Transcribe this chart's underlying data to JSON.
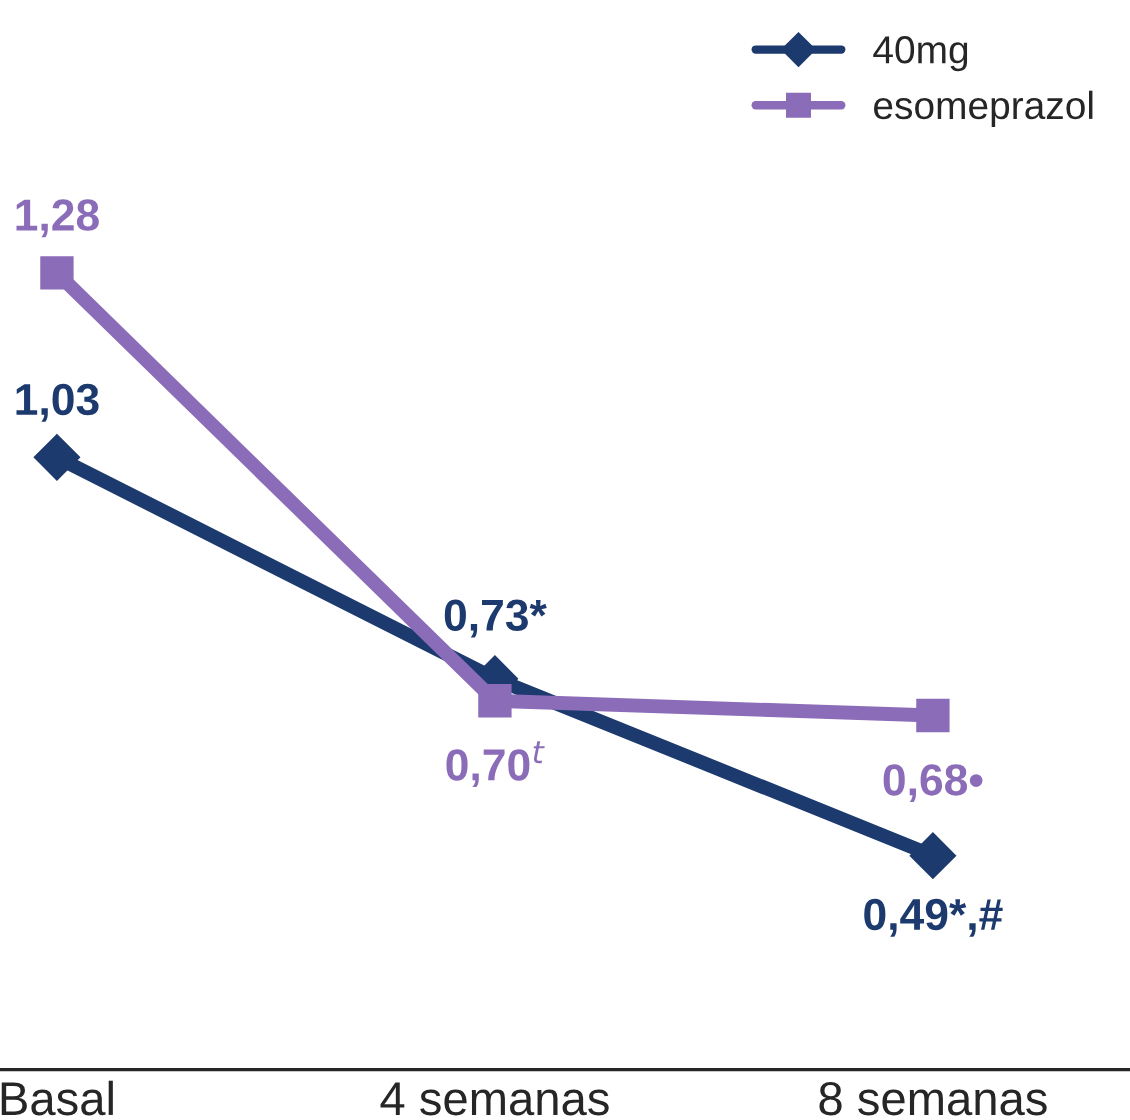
{
  "chart_data": {
    "type": "line",
    "categories": [
      "Basal",
      "4 semanas",
      "8 semanas"
    ],
    "series": [
      {
        "name": "40mg",
        "color": "#1c3a6e",
        "marker": "diamond",
        "values": [
          1.03,
          0.73,
          0.49
        ],
        "value_labels": [
          "1,03",
          "0,73*",
          "0,49*,#"
        ]
      },
      {
        "name": "esomeprazol",
        "color": "#8b6cb8",
        "marker": "square",
        "values": [
          1.28,
          0.7,
          0.68
        ],
        "value_labels": [
          "1,28",
          "0,70$^{t}$",
          "0,68•"
        ]
      }
    ],
    "legend": "top right",
    "grid": false,
    "line_style": "solid"
  }
}
